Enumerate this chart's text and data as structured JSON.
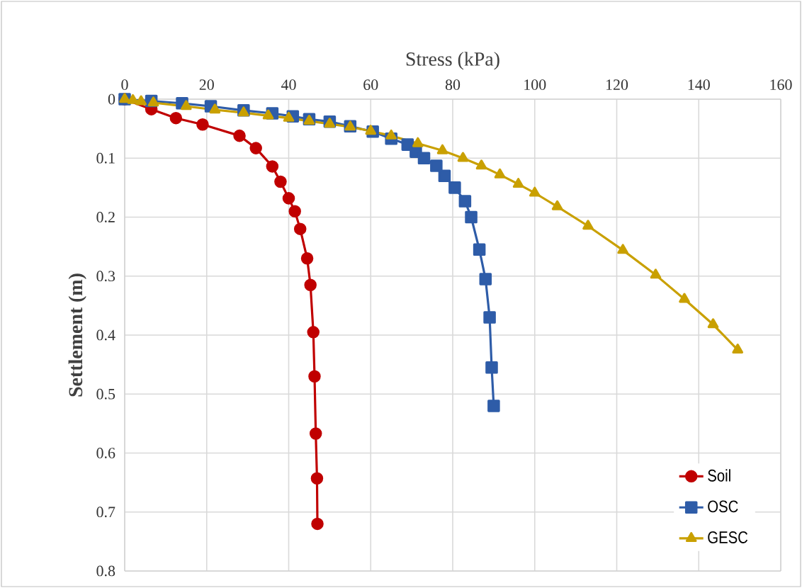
{
  "chart_data": {
    "type": "line",
    "xlabel": "Stress (kPa)",
    "ylabel": "Settlement (m)",
    "xlim": [
      0,
      160
    ],
    "xticks": [
      0,
      20,
      40,
      60,
      80,
      100,
      120,
      140,
      160
    ],
    "ylim": [
      0.8,
      0
    ],
    "yticks": [
      0,
      0.1,
      0.2,
      0.3,
      0.4,
      0.5,
      0.6,
      0.7,
      0.8
    ],
    "grid": true,
    "legend": "bottom right",
    "series": [
      {
        "name": "Soil",
        "color": "#c00000",
        "marker": "circle",
        "x": [
          0,
          6.5,
          12.5,
          19,
          28,
          32,
          36,
          38,
          40,
          41.5,
          42.8,
          44.5,
          45.3,
          46,
          46.3,
          46.6,
          46.9,
          47
        ],
        "values": [
          0,
          0.017,
          0.032,
          0.043,
          0.062,
          0.083,
          0.114,
          0.14,
          0.168,
          0.19,
          0.22,
          0.27,
          0.315,
          0.395,
          0.47,
          0.567,
          0.643,
          0.72
        ]
      },
      {
        "name": "OSC",
        "color": "#2e5ca8",
        "marker": "square",
        "x": [
          0,
          6.5,
          14,
          21,
          29,
          36,
          41,
          45,
          50,
          55,
          60.5,
          65,
          69,
          71,
          73,
          76,
          78,
          80.5,
          83,
          84.5,
          86.5,
          88,
          89,
          89.5,
          90
        ],
        "values": [
          0,
          0.003,
          0.007,
          0.012,
          0.019,
          0.024,
          0.029,
          0.034,
          0.038,
          0.046,
          0.055,
          0.067,
          0.077,
          0.089,
          0.1,
          0.113,
          0.13,
          0.15,
          0.173,
          0.2,
          0.255,
          0.305,
          0.37,
          0.455,
          0.52
        ]
      },
      {
        "name": "GESC",
        "color": "#c9a000",
        "marker": "triangle",
        "x": [
          0,
          2,
          4,
          7,
          15,
          22,
          29,
          35,
          40,
          45,
          50,
          55,
          60,
          65,
          71.5,
          77.5,
          82.5,
          87,
          91.5,
          96,
          100,
          105.5,
          113,
          121.5,
          129.5,
          136.5,
          143.5,
          149.5
        ],
        "values": [
          0,
          0.002,
          0.004,
          0.006,
          0.012,
          0.018,
          0.023,
          0.028,
          0.032,
          0.037,
          0.042,
          0.047,
          0.054,
          0.062,
          0.075,
          0.087,
          0.1,
          0.113,
          0.128,
          0.144,
          0.159,
          0.182,
          0.215,
          0.256,
          0.298,
          0.339,
          0.382,
          0.425
        ]
      }
    ]
  }
}
